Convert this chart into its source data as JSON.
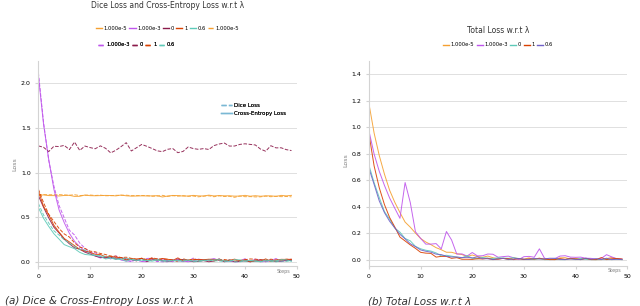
{
  "title_left": "Dice Loss and Cross-Entropy Loss w.r.t λ",
  "title_right": "Total Loss w.r.t λ",
  "ylabel": "Loss",
  "caption_left": "(a) Dice & Cross-Entropy Loss w.r.t λ",
  "caption_right": "(b) Total Loss w.r.t λ",
  "lambda_labels": [
    "1.000e-5",
    "1.000e-3",
    "0",
    "1",
    "0.6"
  ],
  "colors": [
    "#f5a030",
    "#bf55ec",
    "#8b1a4a",
    "#d94000",
    "#5dcab8"
  ],
  "right_colors": [
    "#f5a030",
    "#bf55ec",
    "#5dcab8",
    "#d94000",
    "#7060c8"
  ],
  "steps": 50
}
